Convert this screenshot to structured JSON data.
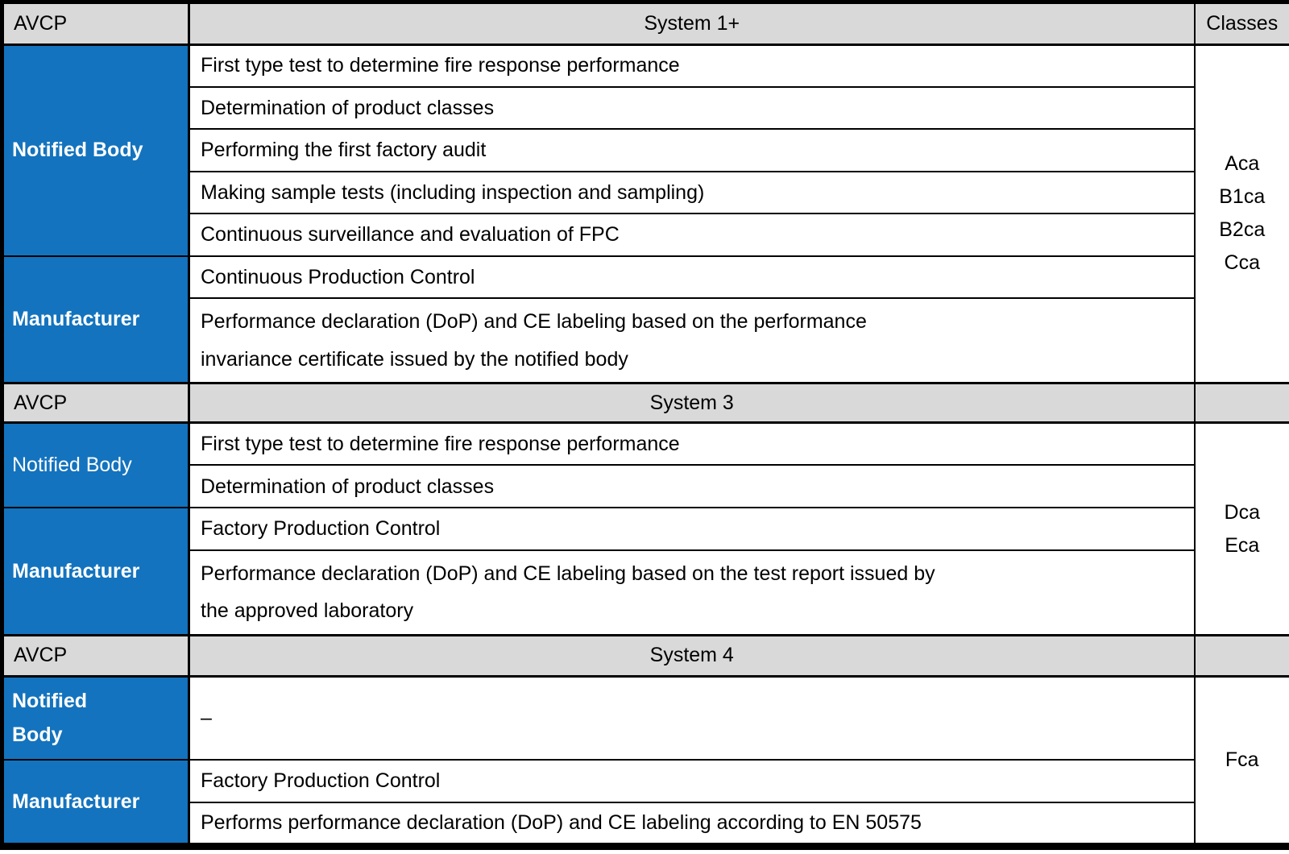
{
  "colors": {
    "header_bg": "#d9d9d9",
    "role_bg": "#1373be",
    "role_text": "#ffffff",
    "cell_bg": "#ffffff",
    "border": "#000000"
  },
  "sections": [
    {
      "header": {
        "avcp": "AVCP",
        "system": "System 1+",
        "classes": "Classes"
      },
      "notified_body": {
        "label": "Notified Body",
        "tasks": [
          "First type test to determine fire response performance",
          "Determination of product classes",
          "Performing the first factory audit",
          "Making sample tests (including inspection and sampling)",
          "Continuous surveillance and evaluation of FPC"
        ]
      },
      "manufacturer": {
        "label": "Manufacturer",
        "tasks": [
          "Continuous Production Control",
          "Performance declaration (DoP) and CE labeling based on the performance\ninvariance certificate issued by the notified body"
        ]
      },
      "classes": [
        "Aca",
        "B1ca",
        "B2ca",
        "Cca"
      ]
    },
    {
      "header": {
        "avcp": "AVCP",
        "system": "System 3",
        "classes": ""
      },
      "notified_body": {
        "label": "Notified Body",
        "tasks": [
          "First type test to determine fire response performance",
          "Determination of product classes"
        ]
      },
      "manufacturer": {
        "label": "Manufacturer",
        "tasks": [
          "Factory Production Control",
          "Performance declaration (DoP) and CE labeling based on the test report issued by\nthe approved laboratory"
        ]
      },
      "classes": [
        "Dca",
        "Eca"
      ]
    },
    {
      "header": {
        "avcp": "AVCP",
        "system": "System 4",
        "classes": ""
      },
      "notified_body": {
        "label": "Notified\nBody",
        "tasks": [
          "–"
        ]
      },
      "manufacturer": {
        "label": "Manufacturer",
        "tasks": [
          "Factory Production Control",
          "Performs performance declaration (DoP) and CE labeling according to EN 50575"
        ]
      },
      "classes": [
        "Fca"
      ]
    }
  ]
}
